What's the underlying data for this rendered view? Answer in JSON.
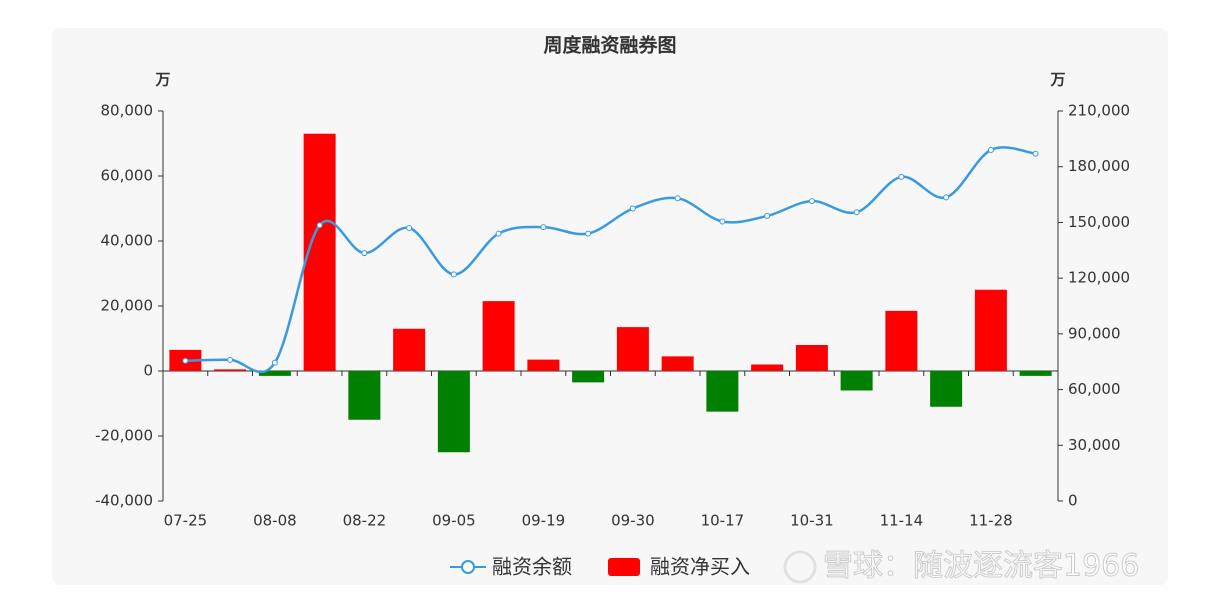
{
  "chart_data": {
    "type": "bar",
    "title": "周度融资融券图",
    "y_unit": "万",
    "y2_unit": "万",
    "categories": [
      "07-25",
      null,
      "08-08",
      null,
      "08-22",
      null,
      "09-05",
      null,
      "09-19",
      null,
      "09-30",
      null,
      "10-17",
      null,
      "10-31",
      null,
      "11-14",
      null,
      "11-28",
      null
    ],
    "series": [
      {
        "name": "融资余额",
        "type": "line",
        "axis": "y2",
        "color": "#3a9ae0",
        "values": [
          75500,
          76000,
          74500,
          148500,
          133500,
          147000,
          122000,
          144000,
          147500,
          144000,
          157500,
          163000,
          150500,
          153500,
          161500,
          155500,
          174500,
          163500,
          189000,
          187000
        ]
      },
      {
        "name": "融资净买入",
        "type": "bar",
        "axis": "y",
        "color": "#ff0000",
        "negative_color": "#008000",
        "values": [
          6500,
          500,
          -1500,
          73000,
          -15000,
          13000,
          -25000,
          21500,
          3500,
          -3500,
          13500,
          4500,
          -12500,
          2000,
          8000,
          -6000,
          18500,
          -11000,
          25000,
          -1500
        ]
      }
    ],
    "ylim": [
      -40000,
      80000
    ],
    "yticks": [
      {
        "value": -40000,
        "label": "-40,000"
      },
      {
        "value": -20000,
        "label": "-20,000"
      },
      0,
      {
        "value": 20000,
        "label": "20,000"
      },
      {
        "value": 40000,
        "label": "40,000"
      },
      {
        "value": 60000,
        "label": "60,000"
      },
      {
        "value": 80000,
        "label": "80,000"
      }
    ],
    "y2lim": [
      0,
      210000
    ],
    "y2ticks": [
      0,
      {
        "value": 30000,
        "label": "30,000"
      },
      {
        "value": 60000,
        "label": "60,000"
      },
      {
        "value": 90000,
        "label": "90,000"
      },
      {
        "value": 120000,
        "label": "120,000"
      },
      {
        "value": 150000,
        "label": "150,000"
      },
      {
        "value": 180000,
        "label": "180,000"
      },
      {
        "value": 210000,
        "label": "210,000"
      }
    ],
    "watermark": "雪球：随波逐流客1966"
  }
}
